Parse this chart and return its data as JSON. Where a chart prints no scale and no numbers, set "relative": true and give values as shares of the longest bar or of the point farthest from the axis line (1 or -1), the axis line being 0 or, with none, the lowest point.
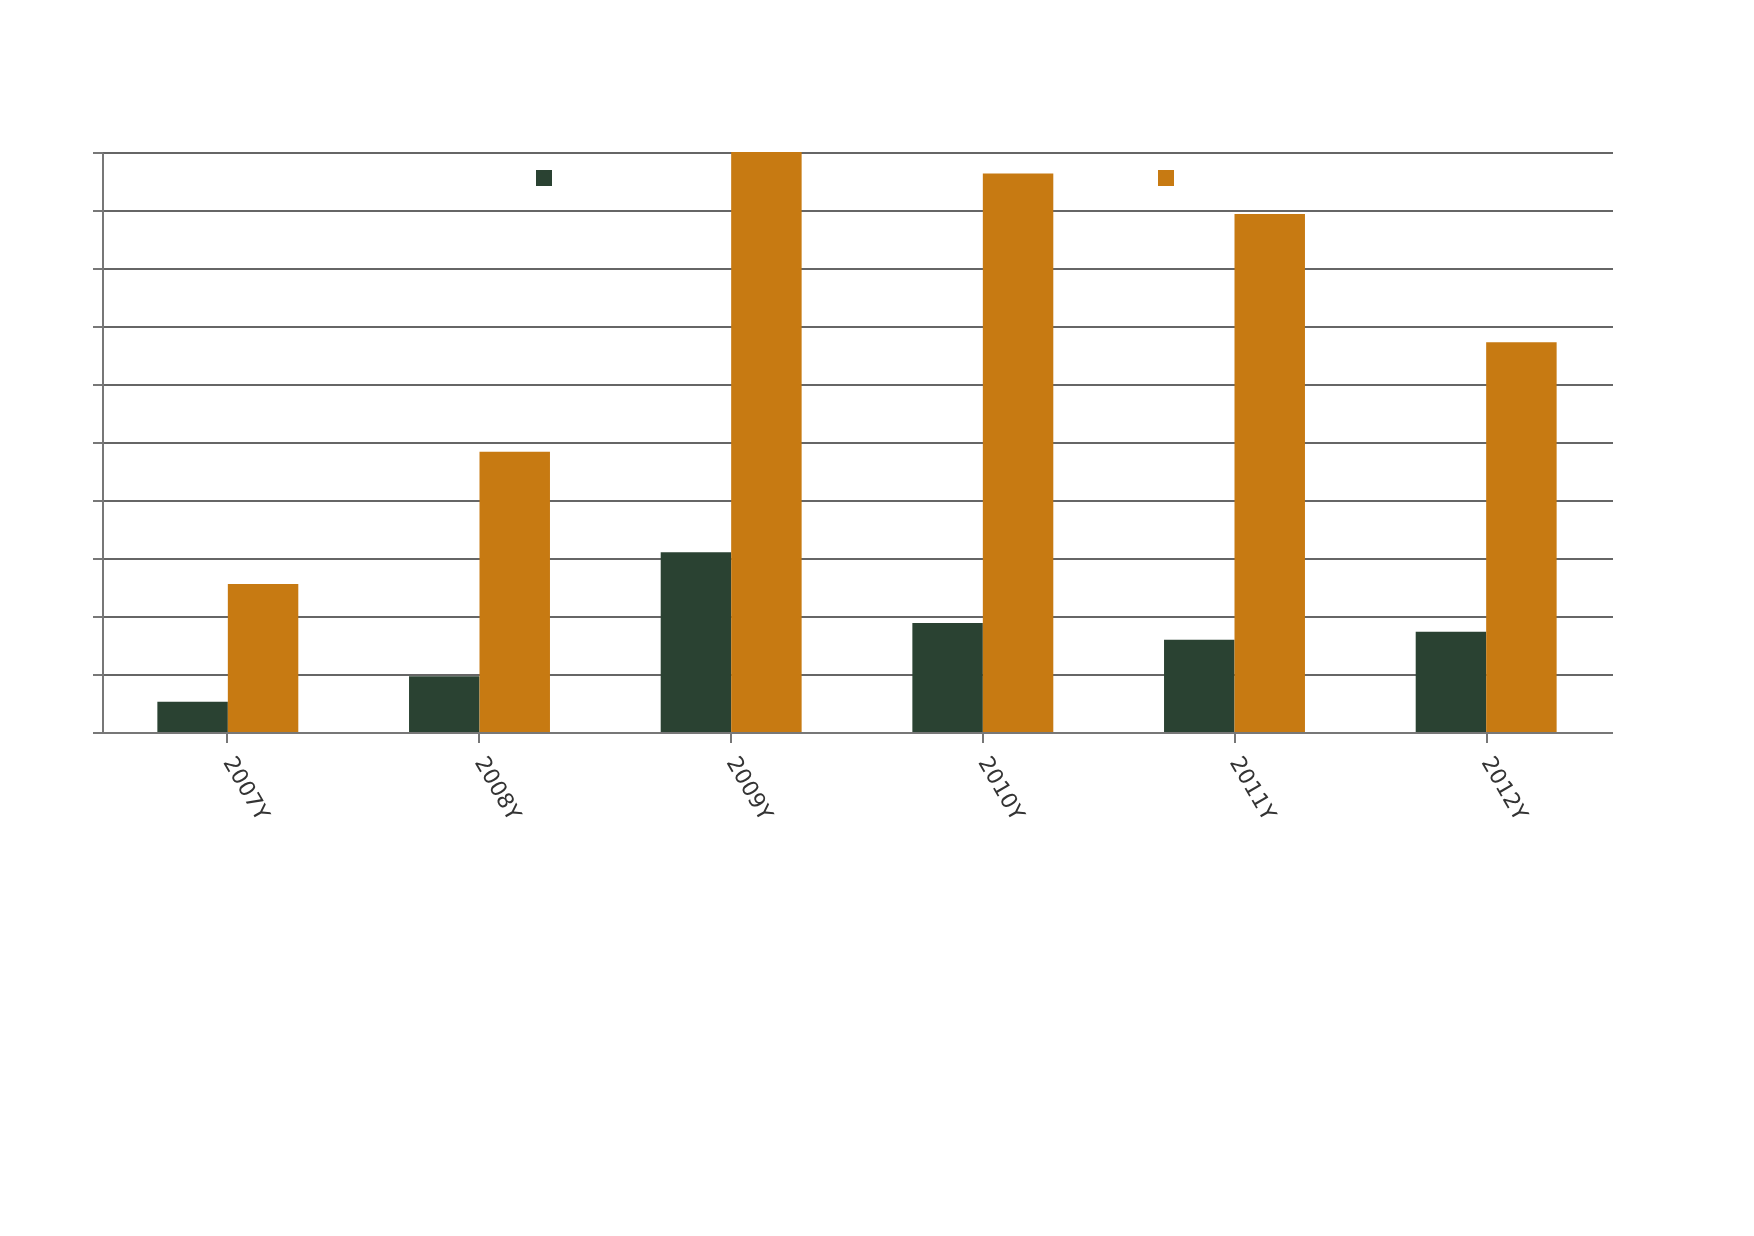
{
  "chart_data": {
    "type": "bar",
    "relative": true,
    "categories": [
      "2007Y",
      "2008Y",
      "2009Y",
      "2010Y",
      "2011Y",
      "2012Y"
    ],
    "series": [
      {
        "color": "#2a4232",
        "values": [
          0.052,
          0.096,
          0.31,
          0.188,
          0.159,
          0.173
        ]
      },
      {
        "color": "#c77a12",
        "values": [
          0.255,
          0.483,
          1,
          0.963,
          0.893,
          0.672
        ]
      }
    ],
    "grid": "y"
  }
}
